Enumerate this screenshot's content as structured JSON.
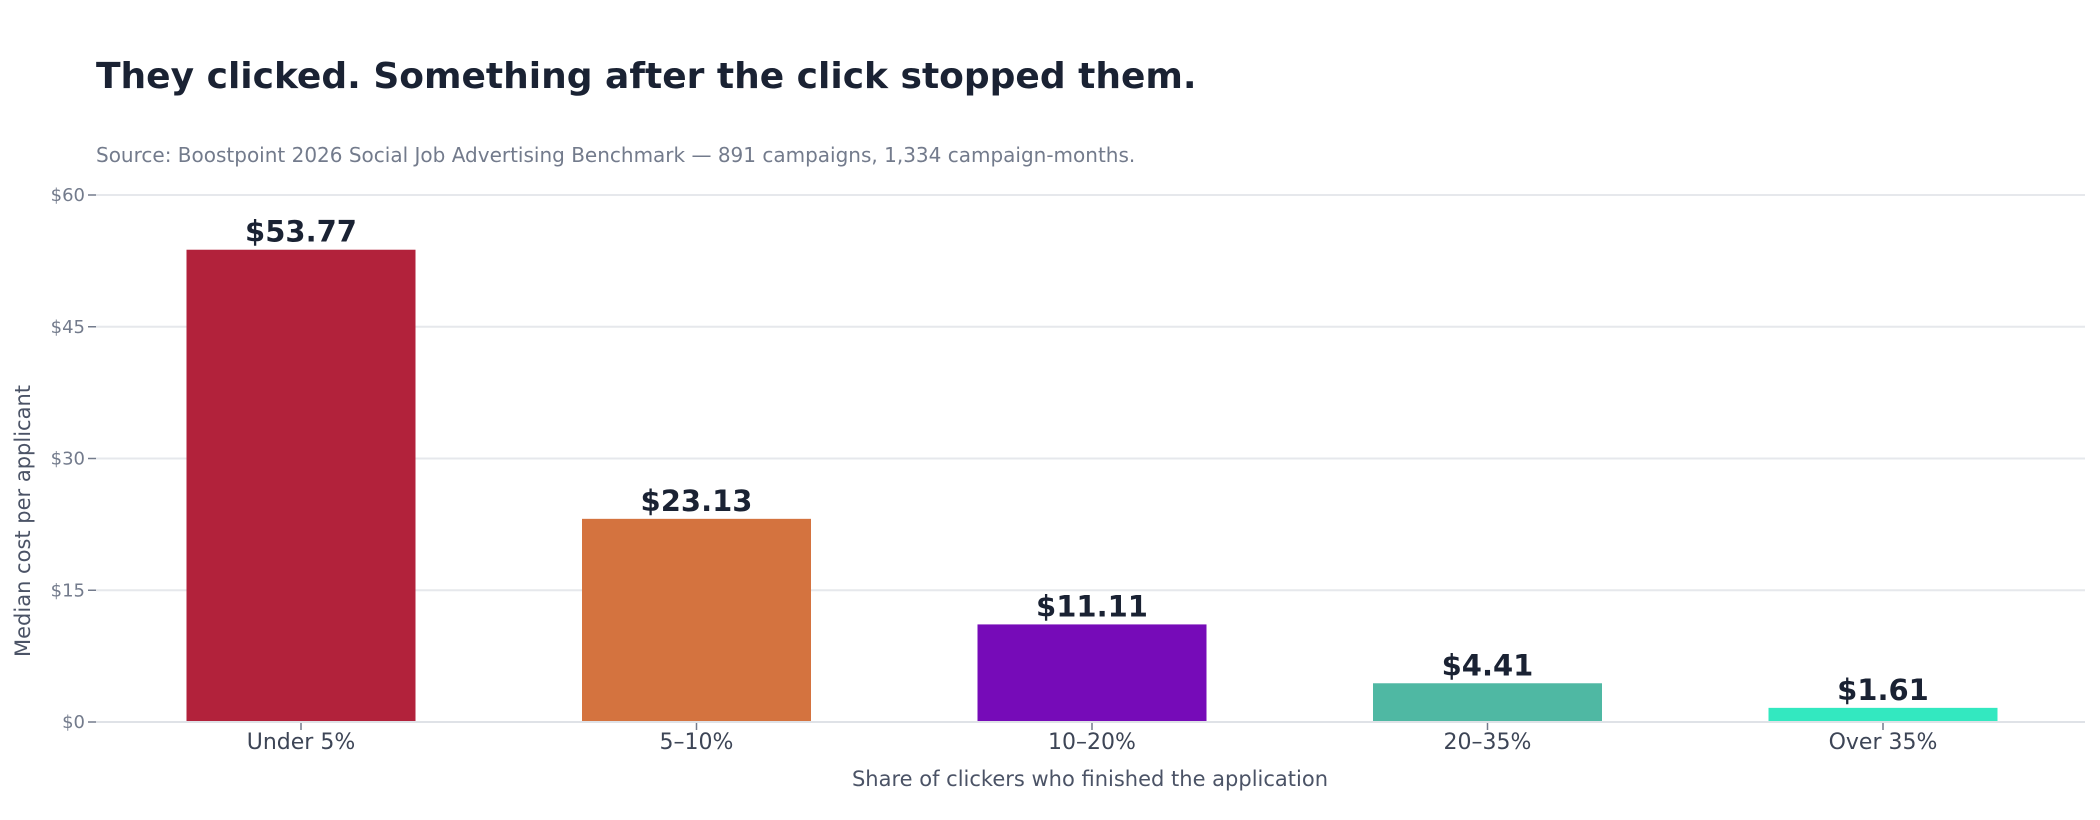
{
  "chart_data": {
    "type": "bar",
    "title": "They clicked. Something after the click stopped them.",
    "subtitle": "Source: Boostpoint 2026 Social Job Advertising Benchmark — 891 campaigns, 1,334 campaign-months.",
    "xlabel": "Share of clickers who finished the application",
    "ylabel": "Median cost per applicant",
    "categories": [
      "Under 5%",
      "5–10%",
      "10–20%",
      "20–35%",
      "Over 35%"
    ],
    "values": [
      53.77,
      23.13,
      11.11,
      4.41,
      1.61
    ],
    "value_labels": [
      "$53.77",
      "$23.13",
      "$11.11",
      "$4.41",
      "$1.61"
    ],
    "colors": [
      "#b2223b",
      "#d4733f",
      "#760bb8",
      "#4fb8a3",
      "#33e8c0"
    ],
    "ylim": [
      0,
      60
    ],
    "yticks": [
      0,
      15,
      30,
      45,
      60
    ],
    "ytick_labels": [
      "$0",
      "$15",
      "$30",
      "$45",
      "$60"
    ],
    "grid": true,
    "legend": "none"
  }
}
